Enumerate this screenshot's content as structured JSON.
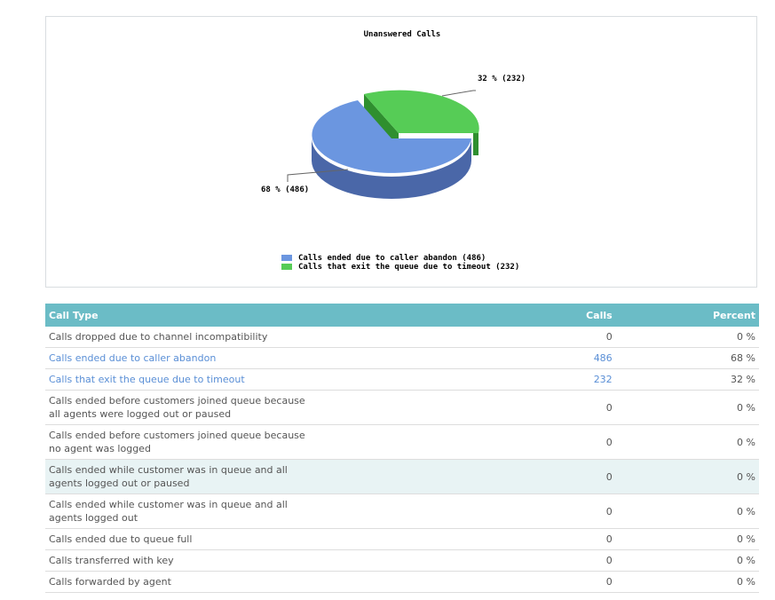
{
  "chart": {
    "title": "Unanswered Calls",
    "slice_labels": [
      "68 % (486)",
      "32 % (232)"
    ],
    "legend": [
      {
        "label": "Calls ended due to caller abandon (486)",
        "color": "#6b96e0"
      },
      {
        "label": "Calls that exit the queue due to timeout (232)",
        "color": "#56cc56"
      }
    ]
  },
  "chart_data": {
    "type": "pie",
    "title": "Unanswered Calls",
    "categories": [
      "Calls ended due to caller abandon",
      "Calls that exit the queue due to timeout"
    ],
    "values": [
      486,
      232
    ],
    "percents": [
      68,
      32
    ],
    "colors": [
      "#6b96e0",
      "#56cc56"
    ],
    "legend_position": "bottom"
  },
  "table": {
    "headers": [
      "Call Type",
      "Calls",
      "Percent"
    ],
    "rows": [
      {
        "type": "Calls dropped due to channel incompatibility",
        "calls": "0",
        "percent": "0 %"
      },
      {
        "type": "Calls ended due to caller abandon",
        "calls": "486",
        "percent": "68 %"
      },
      {
        "type": "Calls that exit the queue due to timeout",
        "calls": "232",
        "percent": "32 %"
      },
      {
        "type": "Calls ended before customers joined queue because all agents were logged out or paused",
        "calls": "0",
        "percent": "0 %"
      },
      {
        "type": "Calls ended before customers joined queue because no agent was logged",
        "calls": "0",
        "percent": "0 %"
      },
      {
        "type": "Calls ended while customer was in queue and all agents logged out or paused",
        "calls": "0",
        "percent": "0 %"
      },
      {
        "type": "Calls ended while customer was in queue and all agents logged out",
        "calls": "0",
        "percent": "0 %"
      },
      {
        "type": "Calls ended due to queue full",
        "calls": "0",
        "percent": "0 %"
      },
      {
        "type": "Calls transferred with key",
        "calls": "0",
        "percent": "0 %"
      },
      {
        "type": "Calls forwarded by agent",
        "calls": "0",
        "percent": "0 %"
      }
    ]
  }
}
